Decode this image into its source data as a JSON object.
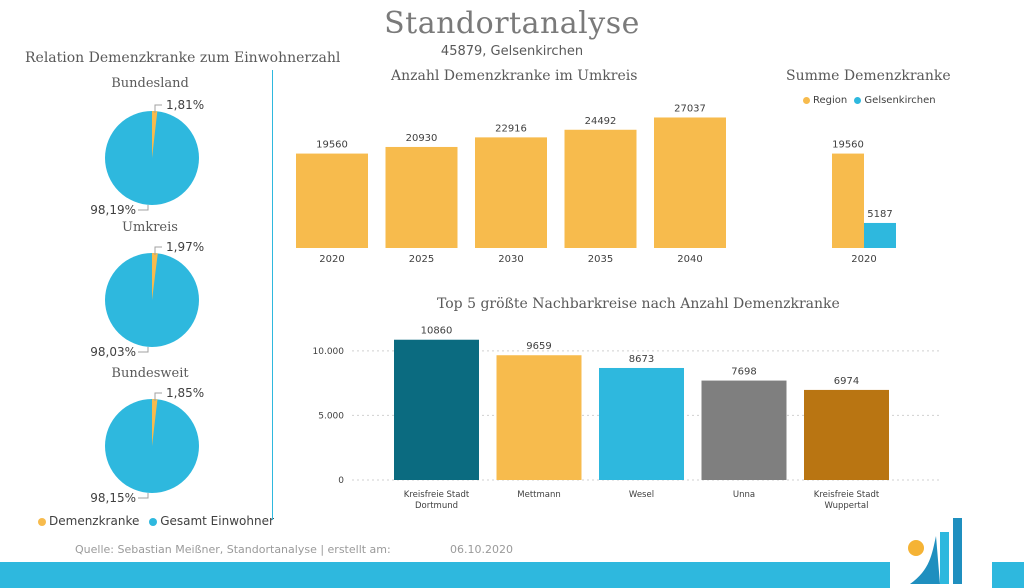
{
  "header": {
    "title": "Standortanalyse",
    "subtitle": "45879, Gelsenkirchen"
  },
  "colors": {
    "demenz": "#f7bb4d",
    "einwohner": "#2eb8de",
    "dortmund": "#0b6b80",
    "unna": "#7f7f7f",
    "wuppertal": "#b97512"
  },
  "pies": {
    "title": "Relation Demenzkranke zum Einwohnerzahl",
    "items": [
      {
        "label": "Bundesland",
        "small": "1,81%",
        "large": "98,19%",
        "value_small": 1.81
      },
      {
        "label": "Umkreis",
        "small": "1,97%",
        "large": "98,03%",
        "value_small": 1.97
      },
      {
        "label": "Bundesweit",
        "small": "1,85%",
        "large": "98,15%",
        "value_small": 1.85
      }
    ],
    "legend": [
      {
        "label": "Demenzkranke",
        "color": "#f7bb4d"
      },
      {
        "label": "Gesamt Einwohner",
        "color": "#2eb8de"
      }
    ]
  },
  "footer": {
    "source": "Quelle: Sebastian Meißner, Standortanalyse | erstellt am:",
    "date": "06.10.2020"
  },
  "chart_data": [
    {
      "type": "pie",
      "title": "Bundesland",
      "categories": [
        "Demenzkranke",
        "Gesamt Einwohner"
      ],
      "values": [
        1.81,
        98.19
      ]
    },
    {
      "type": "pie",
      "title": "Umkreis",
      "categories": [
        "Demenzkranke",
        "Gesamt Einwohner"
      ],
      "values": [
        1.97,
        98.03
      ]
    },
    {
      "type": "pie",
      "title": "Bundesweit",
      "categories": [
        "Demenzkranke",
        "Gesamt Einwohner"
      ],
      "values": [
        1.85,
        98.15
      ]
    },
    {
      "type": "bar",
      "title": "Anzahl Demenzkranke im Umkreis",
      "categories": [
        "2020",
        "2025",
        "2030",
        "2035",
        "2040"
      ],
      "values": [
        19560,
        20930,
        22916,
        24492,
        27037
      ],
      "ylim": [
        0,
        29000
      ],
      "grid": false
    },
    {
      "type": "bar",
      "title": "Summe Demenzkranke",
      "categories": [
        "2020"
      ],
      "series": [
        {
          "name": "Region",
          "values": [
            19560
          ]
        },
        {
          "name": "Gelsenkirchen",
          "values": [
            5187
          ]
        }
      ],
      "legend": "top",
      "ylim": [
        0,
        29000
      ],
      "grid": false
    },
    {
      "type": "bar",
      "title": "Top 5 größte Nachbarkreise nach Anzahl Demenzkranke",
      "categories": [
        "Kreisfreie Stadt Dortmund",
        "Mettmann",
        "Wesel",
        "Unna",
        "Kreisfreie Stadt Wuppertal"
      ],
      "values": [
        10860,
        9659,
        8673,
        7698,
        6974
      ],
      "yticks": [
        "0",
        "5.000",
        "10.000"
      ],
      "ylim": [
        0,
        12000
      ],
      "grid": true
    }
  ]
}
